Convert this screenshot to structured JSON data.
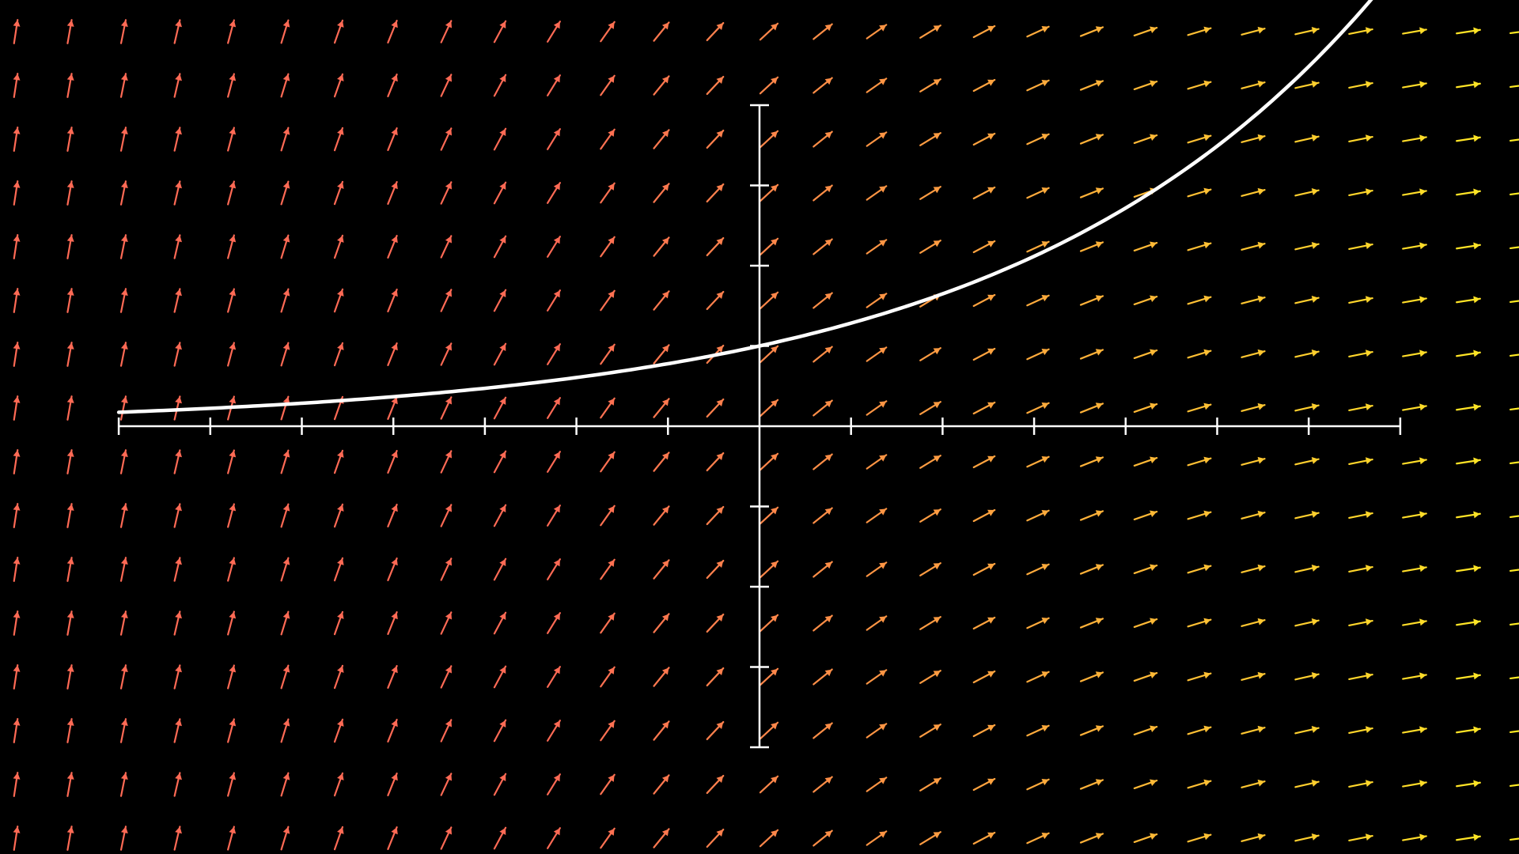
{
  "figure": {
    "kind": "slope-field",
    "background": "#000000",
    "axis_color": "#ffffff",
    "curve_color": "#ffffff",
    "color_low": "#ff6a55",
    "color_high": "#ffee22",
    "arrow_shape": "arrow",
    "x_ticks": [
      -7,
      -6,
      -5,
      -4,
      -3,
      -2,
      -1,
      1,
      2,
      3,
      4,
      5,
      6,
      7
    ],
    "y_ticks": [
      -4,
      -3,
      -2,
      -1,
      1,
      2,
      3,
      4
    ],
    "xlim": [
      -7,
      7
    ],
    "ylim": [
      -4,
      4
    ],
    "solution_curve": "y = e^(x/4)",
    "vector_field_range": {
      "x": [
        -8.2,
        8.2
      ],
      "y": [
        -5.4,
        5.1
      ]
    }
  }
}
